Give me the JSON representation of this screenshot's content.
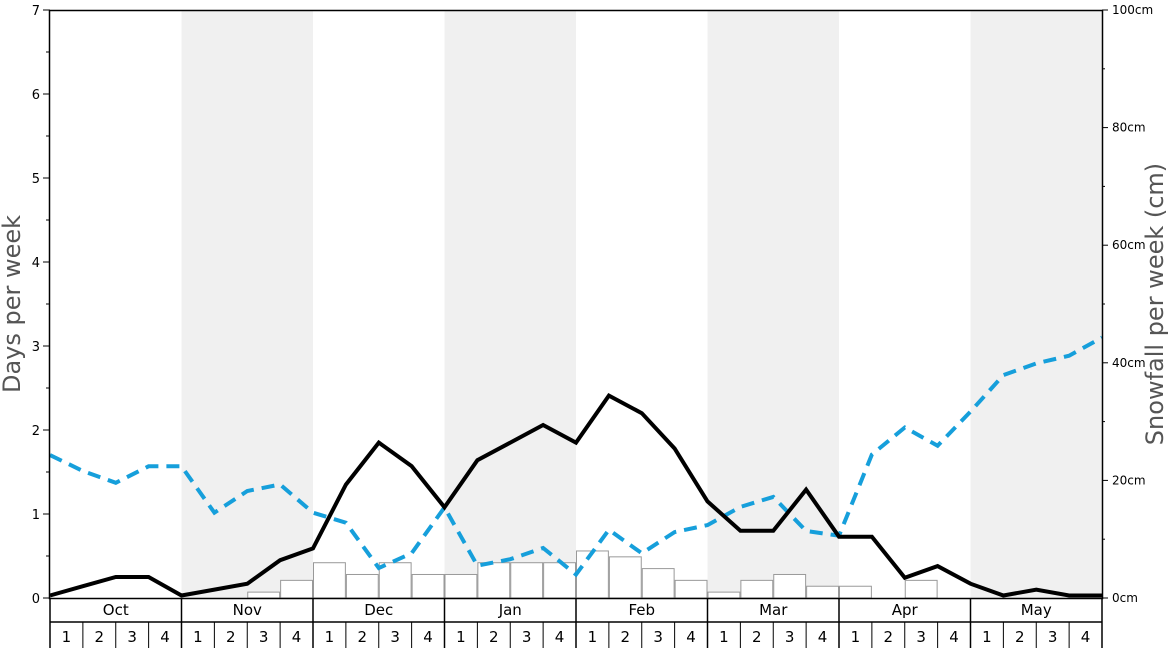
{
  "chart_data": {
    "type": "bar+line",
    "title": "",
    "ylabel_left": "Days per week",
    "ylabel_right": "Snowfall per week (cm)",
    "ylim_left": [
      0,
      7
    ],
    "ylim_right": [
      0,
      100
    ],
    "left_ticks": [
      "0",
      "1",
      "2",
      "3",
      "4",
      "5",
      "6",
      "7"
    ],
    "right_ticks": [
      "0cm",
      "20cm",
      "40cm",
      "60cm",
      "80cm",
      "100cm"
    ],
    "months": [
      "Oct",
      "Nov",
      "Dec",
      "Jan",
      "Feb",
      "Mar",
      "Apr",
      "May"
    ],
    "week_labels": [
      "1",
      "2",
      "3",
      "4"
    ],
    "shaded_months": [
      1,
      3,
      5,
      7
    ],
    "colors": {
      "shade": "#f0f0f0",
      "days_line": "#000000",
      "snow_line": "#169fdb",
      "bar_fill": "#ffffff",
      "bar_stroke": "#999999"
    },
    "snowfall_bars_cm": [
      0,
      0,
      0,
      0,
      0,
      0,
      1,
      3,
      6,
      4,
      6,
      4,
      4,
      6,
      6,
      6,
      8,
      7,
      5,
      3,
      1,
      3,
      4,
      2,
      2,
      0,
      3,
      0,
      0,
      0,
      0,
      0
    ],
    "days_per_week_line": [
      0.03,
      0.14,
      0.25,
      0.25,
      0.03,
      0.1,
      0.17,
      0.45,
      0.59,
      1.35,
      1.85,
      1.57,
      1.08,
      1.64,
      1.85,
      2.06,
      1.85,
      2.41,
      2.2,
      1.78,
      1.15,
      0.8,
      0.8,
      1.29,
      0.73,
      0.73,
      0.24,
      0.38,
      0.17,
      0.03,
      0.1,
      0.03,
      0.03
    ],
    "snowfall_line_cm": [
      24.3,
      21.6,
      19.6,
      22.4,
      22.4,
      14.5,
      18.2,
      19.3,
      14.5,
      12.8,
      5.1,
      7.6,
      15.4,
      5.5,
      6.6,
      8.5,
      4.0,
      11.6,
      7.6,
      11.2,
      12.4,
      15.5,
      17.2,
      11.4,
      10.6,
      24.4,
      29.0,
      25.9,
      31.7,
      37.9,
      39.9,
      41.2,
      44.3
    ]
  }
}
